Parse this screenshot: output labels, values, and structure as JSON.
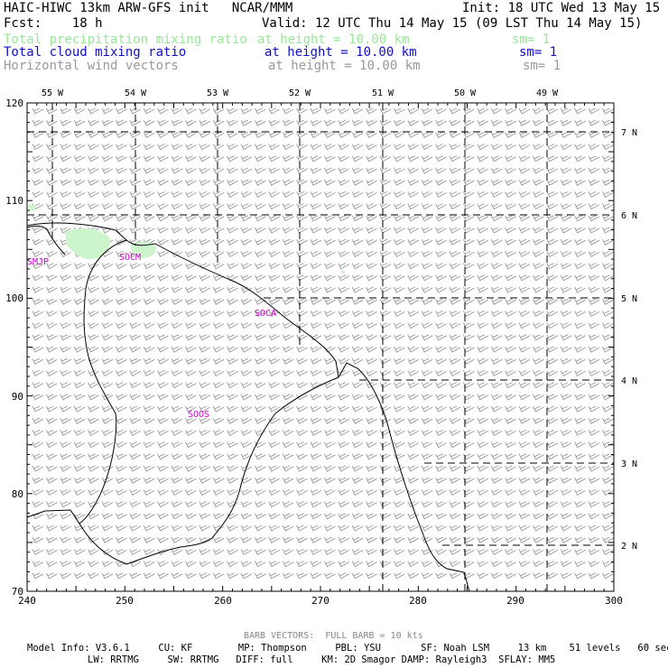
{
  "header": {
    "title_left": "HAIC-HIWC 13km ARW-GFS init   NCAR/MMM",
    "init": "Init: 18 UTC Wed 13 May 15",
    "fcst": "Fcst:    18 h",
    "valid": "Valid: 12 UTC Thu 14 May 15 (09 LST Thu 14 May 15)"
  },
  "fields": [
    {
      "name": "Total precipitation mixing ratio",
      "height": "at height = 10.00 km",
      "sm": "sm= 1",
      "color": "#99e699"
    },
    {
      "name": "Total cloud mixing ratio",
      "height": "at height = 10.00 km",
      "sm": "sm= 1",
      "color": "#1010c8"
    },
    {
      "name": "Horizontal wind vectors",
      "height": "at height = 10.00 km",
      "sm": "sm= 1",
      "color": "#999999"
    }
  ],
  "colors": {
    "precip_fill": "#ccf5cc",
    "barb": "#999999",
    "station": "#cc00cc",
    "coast": "#000000"
  },
  "map": {
    "lon_labels": [
      "55 W",
      "54 W",
      "53 W",
      "52 W",
      "51 W",
      "50 W",
      "49 W"
    ],
    "lat_labels": [
      "7 N",
      "6 N",
      "5 N",
      "4 N",
      "3 N",
      "2 N"
    ],
    "x_ticks": [
      "240",
      "250",
      "260",
      "270",
      "280",
      "290",
      "300"
    ],
    "y_ticks": [
      "120",
      "110",
      "100",
      "90",
      "80",
      "70"
    ],
    "stations": [
      "SMJP",
      "SOCM",
      "SOCA",
      "SOOS"
    ]
  },
  "footer": {
    "barb_note": "BARB VECTORS:  FULL BARB = 10 kts",
    "model_line1": "Model Info: V3.6.1     CU: KF        MP: Thompson     PBL: YSU       SF: Noah LSM     13 km    51 levels   60 sec",
    "model_line2": "LW: RRTMG     SW: RRTMG   DIFF: full     KM: 2D Smagor DAMP: Rayleigh3  SFLAY: MM5"
  }
}
